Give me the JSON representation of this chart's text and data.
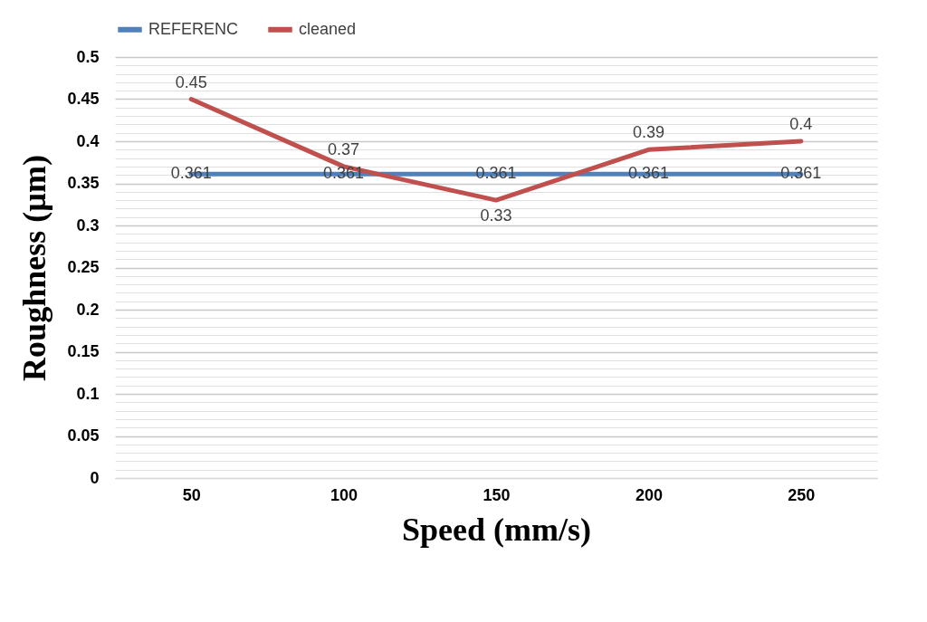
{
  "chart_data": {
    "type": "line",
    "xlabel": "Speed (mm/s)",
    "ylabel": "Roughness (µm)",
    "categories": [
      "50",
      "100",
      "150",
      "200",
      "250"
    ],
    "series": [
      {
        "name": "REFERENC",
        "color": "#4f81bd",
        "values": [
          0.361,
          0.361,
          0.361,
          0.361,
          0.361
        ]
      },
      {
        "name": "cleaned",
        "color": "#c0504d",
        "values": [
          0.45,
          0.37,
          0.33,
          0.39,
          0.4
        ]
      }
    ],
    "ylim": [
      0,
      0.5
    ],
    "yticks": [
      0,
      {
        "value": 0.01,
        "label": null
      },
      {
        "value": 0.02,
        "label": null
      },
      {
        "value": 0.03,
        "label": null
      },
      {
        "value": 0.04,
        "label": null
      },
      0.05,
      {
        "value": 0.06,
        "label": null
      },
      {
        "value": 0.07,
        "label": null
      },
      {
        "value": 0.08,
        "label": null
      },
      {
        "value": 0.09,
        "label": null
      },
      0.1,
      {
        "value": 0.11,
        "label": null
      },
      {
        "value": 0.12,
        "label": null
      },
      {
        "value": 0.13,
        "label": null
      },
      {
        "value": 0.14,
        "label": null
      },
      0.15,
      {
        "value": 0.16,
        "label": null
      },
      {
        "value": 0.17,
        "label": null
      },
      {
        "value": 0.18,
        "label": null
      },
      {
        "value": 0.19,
        "label": null
      },
      0.2,
      {
        "value": 0.21,
        "label": null
      },
      {
        "value": 0.22,
        "label": null
      },
      {
        "value": 0.23,
        "label": null
      },
      {
        "value": 0.24,
        "label": null
      },
      0.25,
      {
        "value": 0.26,
        "label": null
      },
      {
        "value": 0.27,
        "label": null
      },
      {
        "value": 0.28,
        "label": null
      },
      {
        "value": 0.29,
        "label": null
      },
      0.3,
      {
        "value": 0.31,
        "label": null
      },
      {
        "value": 0.32,
        "label": null
      },
      {
        "value": 0.33,
        "label": null
      },
      {
        "value": 0.34,
        "label": null
      },
      0.35,
      {
        "value": 0.36,
        "label": null
      },
      {
        "value": 0.37,
        "label": null
      },
      {
        "value": 0.38,
        "label": null
      },
      {
        "value": 0.39,
        "label": null
      },
      0.4,
      {
        "value": 0.41,
        "label": null
      },
      {
        "value": 0.42,
        "label": null
      },
      {
        "value": 0.43,
        "label": null
      },
      {
        "value": 0.44,
        "label": null
      },
      0.45,
      {
        "value": 0.46,
        "label": null
      },
      {
        "value": 0.47,
        "label": null
      },
      {
        "value": 0.48,
        "label": null
      },
      {
        "value": 0.49,
        "label": null
      },
      0.5
    ],
    "grid": "y",
    "legend": "top",
    "data_labels": true,
    "marker": "none",
    "line_style": "solid"
  }
}
